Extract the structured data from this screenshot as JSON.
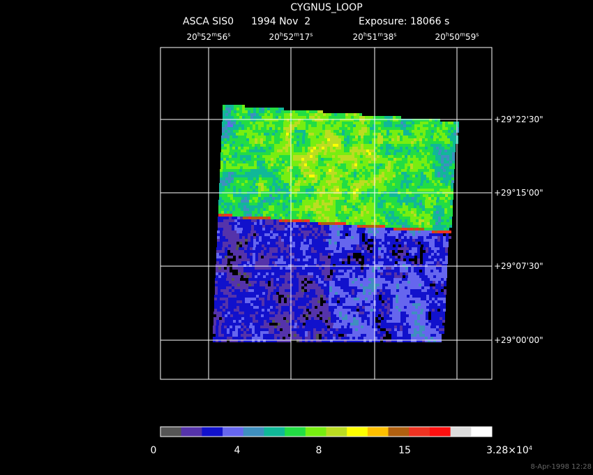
{
  "header": {
    "title": "CYGNUS_LOOP",
    "instrument": "ASCA SIS0",
    "date": "1994 Nov  2",
    "exposure": "Exposure: 18066 s"
  },
  "ra_labels": [
    [
      "20",
      "h",
      "52",
      "m",
      "56",
      "s"
    ],
    [
      "20",
      "h",
      "52",
      "m",
      "17",
      "s"
    ],
    [
      "20",
      "h",
      "51",
      "m",
      "38",
      "s"
    ],
    [
      "20",
      "h",
      "50",
      "m",
      "59",
      "s"
    ]
  ],
  "dec_labels": [
    "+29°22'30\"",
    "+29°15'00\"",
    "+29°07'30\"",
    "+29°00'00\""
  ],
  "colorbar": {
    "colors": [
      "#555555",
      "#5533aa",
      "#1111cc",
      "#6666ee",
      "#3f8fbf",
      "#10b898",
      "#22dd44",
      "#77ee11",
      "#bbdd22",
      "#ffff00",
      "#ffc000",
      "#b06010",
      "#ee3322",
      "#ff1010",
      "#dddddd",
      "#ffffff"
    ],
    "labels": [
      "0",
      "4",
      "8",
      "15",
      [
        "3.28×10",
        "4"
      ]
    ]
  },
  "timestamp": "8-Apr-1998 12:28"
}
